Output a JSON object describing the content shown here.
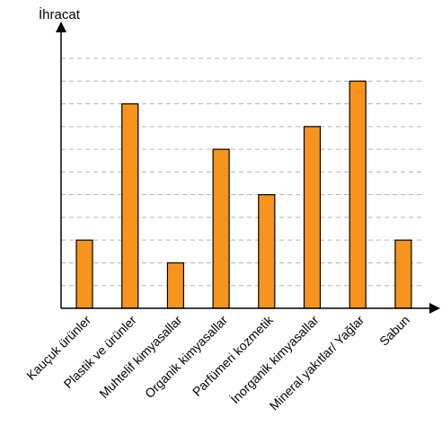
{
  "chart_data": {
    "type": "bar",
    "title": "",
    "ylabel": "İhracat",
    "xlabel": "",
    "categories": [
      "Kauçuk ürünler",
      "Plastik ve ürünler",
      "Muhtelif kimyasallar",
      "Organik kimyasallar",
      "Parfümeri kozmetik",
      "İnorganik kimyasallar",
      "Mineral yakıtlar/ Yağlar",
      "Sabun"
    ],
    "values": [
      3,
      9,
      2,
      7,
      5,
      8,
      10,
      3
    ],
    "ylim": [
      0,
      11
    ],
    "grid": true,
    "y_ticks_labeled": false,
    "colors": {
      "bar": "#f7941d",
      "bar_edge": "#000000",
      "grid": "#b4b4b4",
      "axis": "#000000"
    }
  }
}
